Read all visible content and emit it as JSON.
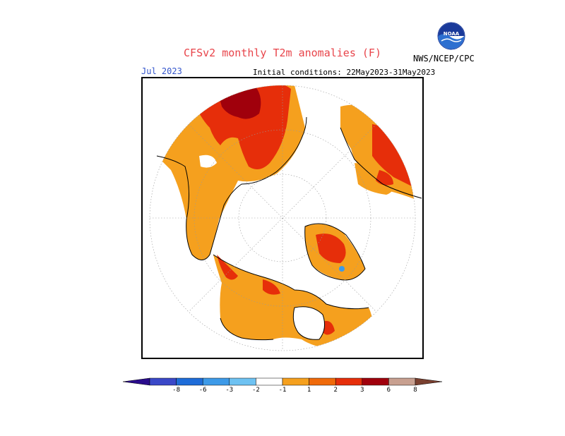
{
  "header": {
    "title": "CFSv2 monthly T2m anomalies (F)",
    "valid_month": "Jul 2023",
    "initial_conditions": "Initial conditions: 22May2023-31May2023",
    "organization": "NWS/NCEP/CPC",
    "logo_text": "NOAA"
  },
  "colorbar": {
    "ticks": [
      "-8",
      "-6",
      "-3",
      "-2",
      "-1",
      "1",
      "2",
      "3",
      "6",
      "8"
    ],
    "colors": [
      "#2a0c8c",
      "#3a48c8",
      "#1e6cd8",
      "#3d9ae8",
      "#6ec2f2",
      "#ffffff",
      "#f5a01e",
      "#f06a0a",
      "#e62e0a",
      "#a0000c",
      "#c8a090",
      "#7a4030"
    ]
  },
  "legend_palette": {
    "warm1": "#f5a01e",
    "warm2": "#f06a0a",
    "warm3": "#e62e0a",
    "warm4": "#a0000c",
    "cool": "#3d9ae8"
  }
}
